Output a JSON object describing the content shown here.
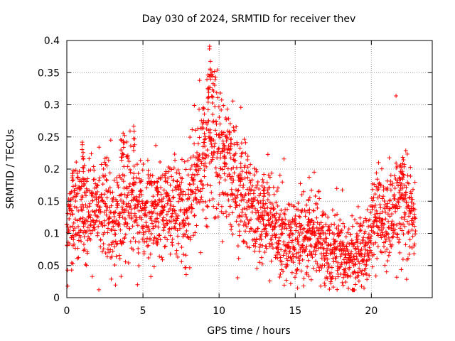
{
  "chart_data": {
    "type": "scatter",
    "title": "Day 030 of 2024, SRMTID for receiver thev",
    "xlabel": "GPS time / hours",
    "ylabel": "SRMTID / TECUs",
    "xlim": [
      0,
      24
    ],
    "ylim": [
      0,
      0.4
    ],
    "x_ticks": [
      "0",
      "5",
      "10",
      "15",
      "20"
    ],
    "y_ticks": [
      "0",
      "0.05",
      "0.1",
      "0.15",
      "0.2",
      "0.25",
      "0.3",
      "0.35",
      "0.4"
    ],
    "grid": true,
    "marker": "plus",
    "color": "#ff0000",
    "trend": [
      {
        "x": 0.0,
        "y": 0.12
      },
      {
        "x": 0.5,
        "y": 0.135
      },
      {
        "x": 1.0,
        "y": 0.14
      },
      {
        "x": 1.5,
        "y": 0.135
      },
      {
        "x": 2.0,
        "y": 0.135
      },
      {
        "x": 2.5,
        "y": 0.14
      },
      {
        "x": 3.0,
        "y": 0.12
      },
      {
        "x": 3.5,
        "y": 0.13
      },
      {
        "x": 4.0,
        "y": 0.15
      },
      {
        "x": 4.5,
        "y": 0.14
      },
      {
        "x": 5.0,
        "y": 0.135
      },
      {
        "x": 5.5,
        "y": 0.125
      },
      {
        "x": 6.0,
        "y": 0.14
      },
      {
        "x": 6.5,
        "y": 0.145
      },
      {
        "x": 7.0,
        "y": 0.15
      },
      {
        "x": 7.5,
        "y": 0.145
      },
      {
        "x": 8.0,
        "y": 0.14
      },
      {
        "x": 8.5,
        "y": 0.17
      },
      {
        "x": 9.0,
        "y": 0.22
      },
      {
        "x": 9.5,
        "y": 0.25
      },
      {
        "x": 10.0,
        "y": 0.22
      },
      {
        "x": 10.5,
        "y": 0.21
      },
      {
        "x": 11.0,
        "y": 0.19
      },
      {
        "x": 11.5,
        "y": 0.16
      },
      {
        "x": 12.0,
        "y": 0.14
      },
      {
        "x": 12.5,
        "y": 0.13
      },
      {
        "x": 13.0,
        "y": 0.12
      },
      {
        "x": 13.5,
        "y": 0.11
      },
      {
        "x": 14.0,
        "y": 0.105
      },
      {
        "x": 14.5,
        "y": 0.09
      },
      {
        "x": 15.0,
        "y": 0.08
      },
      {
        "x": 15.5,
        "y": 0.085
      },
      {
        "x": 16.0,
        "y": 0.1
      },
      {
        "x": 16.5,
        "y": 0.095
      },
      {
        "x": 17.0,
        "y": 0.08
      },
      {
        "x": 17.5,
        "y": 0.07
      },
      {
        "x": 18.0,
        "y": 0.07
      },
      {
        "x": 18.5,
        "y": 0.065
      },
      {
        "x": 19.0,
        "y": 0.07
      },
      {
        "x": 19.5,
        "y": 0.075
      },
      {
        "x": 20.0,
        "y": 0.1
      },
      {
        "x": 20.5,
        "y": 0.13
      },
      {
        "x": 21.0,
        "y": 0.11
      },
      {
        "x": 21.5,
        "y": 0.14
      },
      {
        "x": 22.0,
        "y": 0.15
      },
      {
        "x": 22.5,
        "y": 0.13
      },
      {
        "x": 22.9,
        "y": 0.12
      }
    ],
    "spikes": [
      {
        "x": 0.4,
        "y": 0.2
      },
      {
        "x": 1.05,
        "y": 0.245
      },
      {
        "x": 1.1,
        "y": 0.22
      },
      {
        "x": 3.6,
        "y": 0.255
      },
      {
        "x": 3.75,
        "y": 0.265
      },
      {
        "x": 4.4,
        "y": 0.27
      },
      {
        "x": 5.9,
        "y": 0.21
      },
      {
        "x": 9.0,
        "y": 0.3
      },
      {
        "x": 9.3,
        "y": 0.35
      },
      {
        "x": 9.45,
        "y": 0.37
      },
      {
        "x": 9.55,
        "y": 0.36
      },
      {
        "x": 10.3,
        "y": 0.255
      },
      {
        "x": 10.75,
        "y": 0.265
      },
      {
        "x": 11.4,
        "y": 0.22
      },
      {
        "x": 12.9,
        "y": 0.205
      },
      {
        "x": 15.9,
        "y": 0.16
      },
      {
        "x": 18.85,
        "y": 0.015
      },
      {
        "x": 21.9,
        "y": 0.21
      },
      {
        "x": 22.1,
        "y": 0.22
      }
    ],
    "series": [
      {
        "values": []
      }
    ]
  }
}
